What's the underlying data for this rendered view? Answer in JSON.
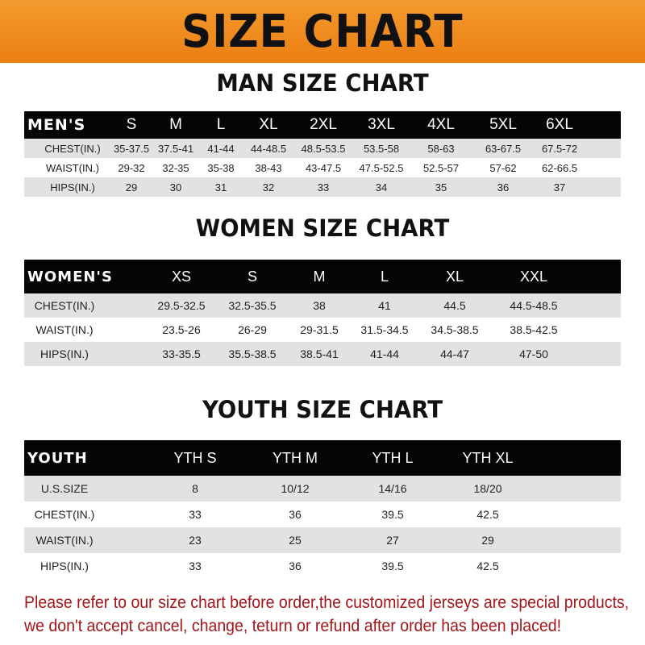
{
  "banner_title": "SIZE CHART",
  "colors": {
    "banner": "#ec7f12",
    "header_row": "#050505",
    "stripe": "#e2e2e2",
    "note": "#a3161a"
  },
  "men": {
    "title": "MAN SIZE CHART",
    "header": [
      "MEN'S",
      "S",
      "M",
      "L",
      "XL",
      "2XL",
      "3XL",
      "4XL",
      "5XL",
      "6XL"
    ],
    "rows": [
      [
        "CHEST(IN.)",
        "35-37.5",
        "37.5-41",
        "41-44",
        "44-48.5",
        "48.5-53.5",
        "53.5-58",
        "58-63",
        "63-67.5",
        "67.5-72"
      ],
      [
        "WAIST(IN.)",
        "29-32",
        "32-35",
        "35-38",
        "38-43",
        "43-47.5",
        "47.5-52.5",
        "52.5-57",
        "57-62",
        "62-66.5"
      ],
      [
        "HIPS(IN.)",
        "29",
        "30",
        "31",
        "32",
        "33",
        "34",
        "35",
        "36",
        "37"
      ]
    ]
  },
  "women": {
    "title": "WOMEN SIZE CHART",
    "header": [
      "WOMEN'S",
      "XS",
      "S",
      "M",
      "L",
      "XL",
      "XXL"
    ],
    "rows": [
      [
        "CHEST(IN.)",
        "29.5-32.5",
        "32.5-35.5",
        "38",
        "41",
        "44.5",
        "44.5-48.5"
      ],
      [
        "WAIST(IN.)",
        "23.5-26",
        "26-29",
        "29-31.5",
        "31.5-34.5",
        "34.5-38.5",
        "38.5-42.5"
      ],
      [
        "HIPS(IN.)",
        "33-35.5",
        "35.5-38.5",
        "38.5-41",
        "41-44",
        "44-47",
        "47-50"
      ]
    ]
  },
  "youth": {
    "title": "YOUTH SIZE CHART",
    "header": [
      "YOUTH",
      "YTH S",
      "YTH M",
      "YTH L",
      "YTH XL"
    ],
    "rows": [
      [
        "U.S.SIZE",
        "8",
        "10/12",
        "14/16",
        "18/20"
      ],
      [
        "CHEST(IN.)",
        "33",
        "36",
        "39.5",
        "42.5"
      ],
      [
        "WAIST(IN.)",
        "23",
        "25",
        "27",
        "29"
      ],
      [
        "HIPS(IN.)",
        "33",
        "36",
        "39.5",
        "42.5"
      ]
    ]
  },
  "note": {
    "line1": "Please refer to our size chart before order,the customized jerseys are special products,",
    "line2": "we don't accept cancel, change, teturn or refund after order has been placed!"
  }
}
